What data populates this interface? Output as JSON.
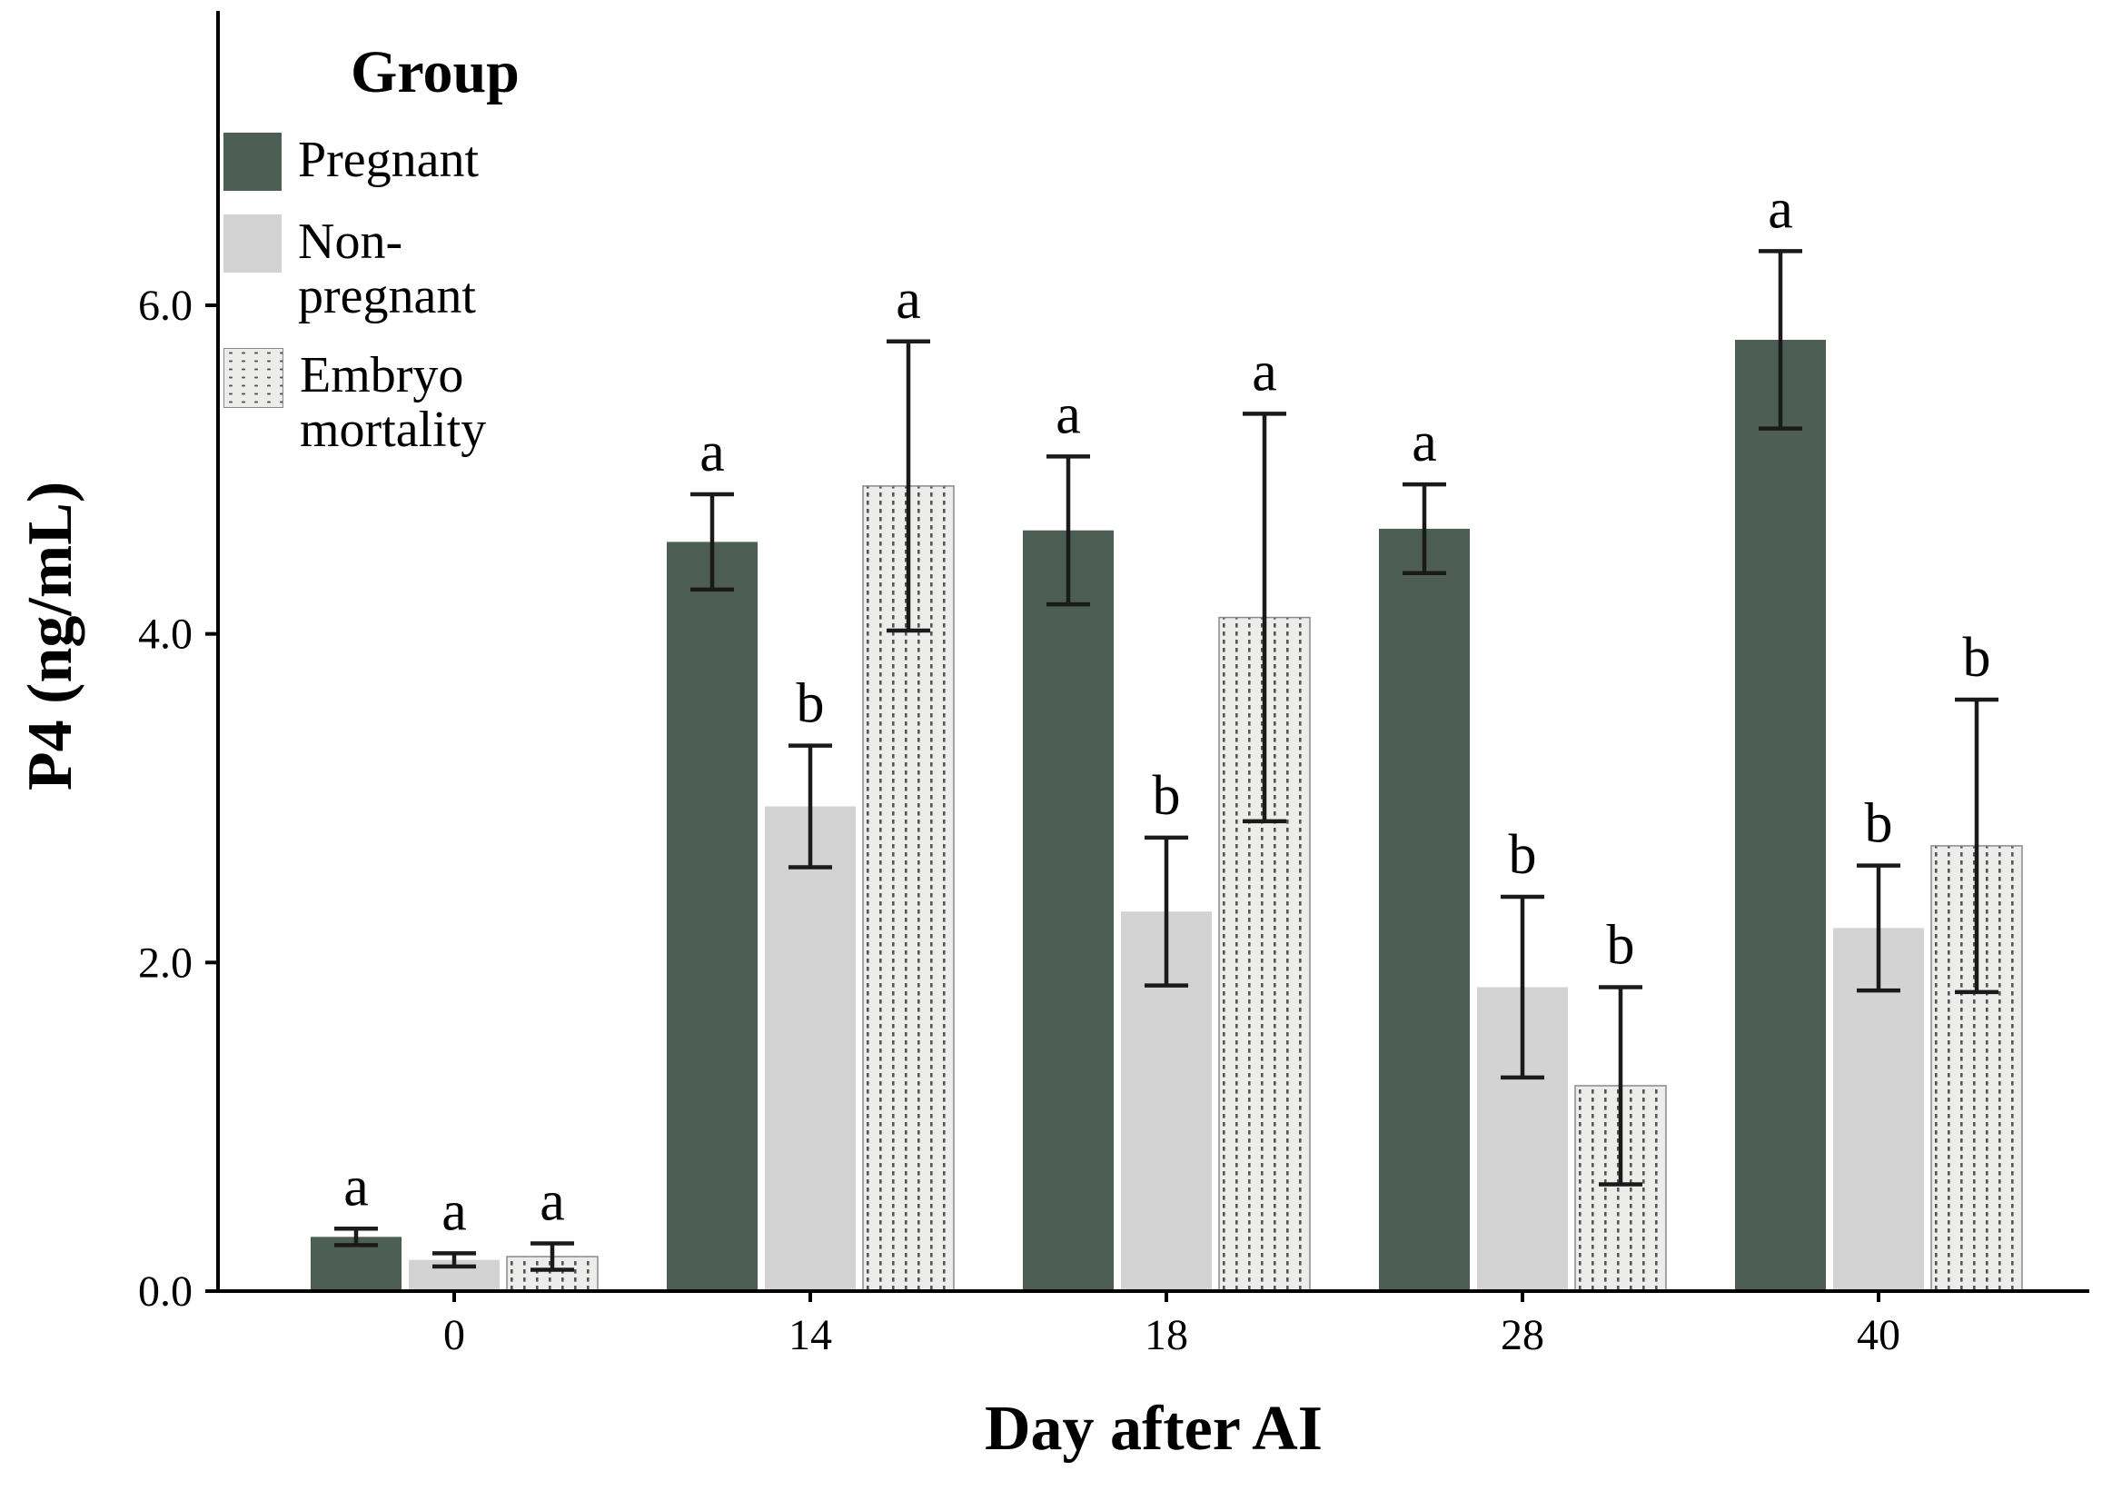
{
  "page": {
    "background": "#ffffff"
  },
  "chart_data": {
    "type": "bar",
    "title": "",
    "xlabel": "Day after AI",
    "ylabel": "P4 (ng/mL)",
    "categories": [
      "0",
      "14",
      "18",
      "28",
      "40"
    ],
    "ylim": [
      0,
      7.3
    ],
    "yticks": [
      {
        "value": 0,
        "label": "0.0"
      },
      {
        "value": 2,
        "label": "2.0"
      },
      {
        "value": 4,
        "label": "4.0"
      },
      {
        "value": 6,
        "label": "6.0"
      }
    ],
    "grid": false,
    "legend": {
      "title": "Group",
      "position": "top-left"
    },
    "axis_color": "#000000",
    "error_bar_color": "#1a1a1a",
    "series": [
      {
        "name": "Pregnant",
        "legend_label": "Pregnant",
        "color": "#4d5e54",
        "pattern": "solid",
        "values": [
          0.33,
          4.56,
          4.63,
          4.64,
          5.79
        ],
        "errors": [
          0.05,
          0.29,
          0.45,
          0.27,
          0.54
        ],
        "letters": [
          "a",
          "a",
          "a",
          "a",
          "a"
        ]
      },
      {
        "name": "Non-pregnant",
        "legend_label": "Non-\npregnant",
        "color": "#d3d3d3",
        "pattern": "solid",
        "values": [
          0.19,
          2.95,
          2.31,
          1.85,
          2.21
        ],
        "errors": [
          0.04,
          0.37,
          0.45,
          0.55,
          0.38
        ],
        "letters": [
          "a",
          "b",
          "b",
          "b",
          "b"
        ]
      },
      {
        "name": "Embryo mortality",
        "legend_label": "Embryo\nmortality",
        "color": "#ececea",
        "pattern": "dotted-vertical",
        "pattern_dot_color": "#555555",
        "values": [
          0.21,
          4.9,
          4.1,
          1.25,
          2.71
        ],
        "errors": [
          0.08,
          0.88,
          1.24,
          0.6,
          0.89
        ],
        "letters": [
          "a",
          "a",
          "a",
          "b",
          "b"
        ]
      }
    ]
  }
}
